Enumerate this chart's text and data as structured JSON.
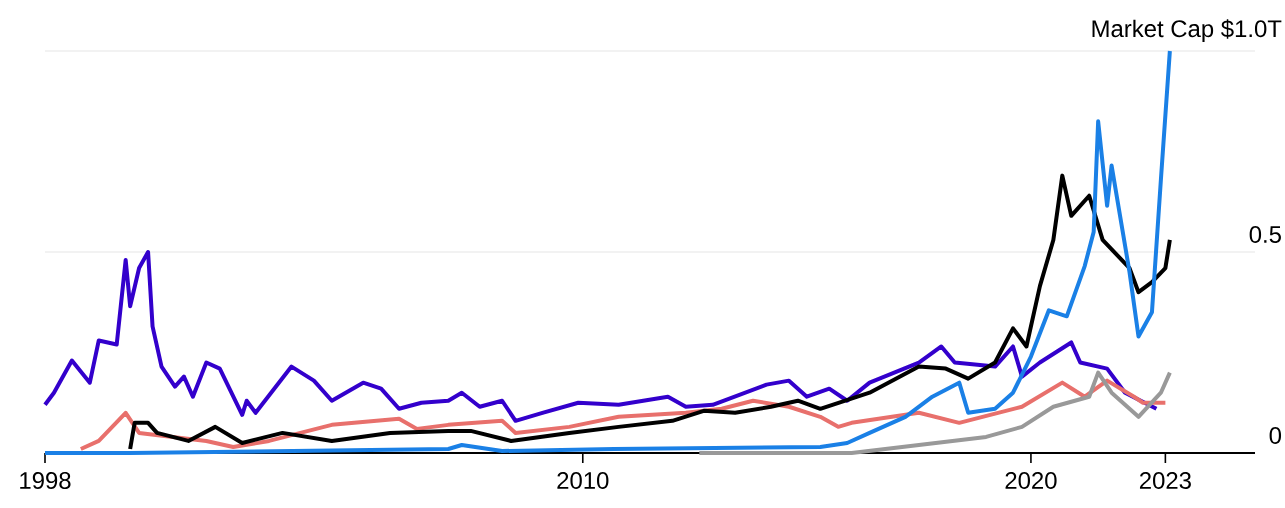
{
  "chart_data": {
    "type": "line",
    "xlim": [
      1998,
      2025
    ],
    "ylim": [
      0,
      1
    ],
    "xticks": [
      1998,
      2010,
      2020,
      2023
    ],
    "yticks": [
      0,
      0.5,
      {
        "value": 1,
        "label": "Market Cap $1.0T"
      }
    ],
    "grid": "y",
    "line_style": "solid",
    "series": [
      {
        "color": "#3300cc",
        "x": [
          1998.0,
          1998.2,
          1998.6,
          1999.0,
          1999.2,
          1999.6,
          1999.8,
          1999.9,
          2000.1,
          2000.3,
          2000.4,
          2000.6,
          2000.9,
          2001.1,
          2001.3,
          2001.6,
          2001.9,
          2002.4,
          2002.5,
          2002.7,
          2003.5,
          2004.0,
          2004.4,
          2005.1,
          2005.5,
          2005.9,
          2006.4,
          2007.0,
          2007.3,
          2007.7,
          2008.2,
          2008.5,
          2009.1,
          2009.9,
          2010.8,
          2011.9,
          2012.3,
          2012.9,
          2014.1,
          2014.6,
          2015.0,
          2015.5,
          2015.9,
          2016.4,
          2017.5,
          2018.0,
          2018.3,
          2019.2,
          2019.6,
          2019.8,
          2020.2,
          2020.9,
          2021.1,
          2021.7,
          2022.1,
          2022.8
        ],
        "values": [
          0.12,
          0.15,
          0.23,
          0.175,
          0.28,
          0.27,
          0.48,
          0.365,
          0.46,
          0.5,
          0.315,
          0.215,
          0.165,
          0.19,
          0.14,
          0.225,
          0.21,
          0.095,
          0.13,
          0.1,
          0.215,
          0.18,
          0.13,
          0.175,
          0.16,
          0.11,
          0.125,
          0.13,
          0.15,
          0.115,
          0.13,
          0.08,
          0.1,
          0.125,
          0.12,
          0.14,
          0.115,
          0.12,
          0.17,
          0.18,
          0.14,
          0.16,
          0.13,
          0.175,
          0.225,
          0.265,
          0.225,
          0.215,
          0.265,
          0.19,
          0.225,
          0.275,
          0.225,
          0.21,
          0.15,
          0.11
        ]
      },
      {
        "color": "#e8706c",
        "x": [
          1998.8,
          1999.2,
          1999.8,
          2000.1,
          2001.6,
          2002.2,
          2003.0,
          2004.4,
          2005.9,
          2006.3,
          2007.0,
          2008.2,
          2008.5,
          2009.7,
          2010.8,
          2012.3,
          2013.1,
          2013.8,
          2014.6,
          2015.3,
          2015.7,
          2016.0,
          2017.5,
          2018.4,
          2019.8,
          2020.7,
          2021.2,
          2021.7,
          2022.3,
          2022.5,
          2023.0
        ],
        "values": [
          0.01,
          0.03,
          0.1,
          0.05,
          0.03,
          0.015,
          0.03,
          0.07,
          0.085,
          0.06,
          0.07,
          0.08,
          0.05,
          0.065,
          0.09,
          0.1,
          0.11,
          0.13,
          0.115,
          0.09,
          0.065,
          0.075,
          0.1,
          0.075,
          0.115,
          0.175,
          0.14,
          0.18,
          0.14,
          0.125,
          0.125
        ]
      },
      {
        "color": "#000000",
        "x": [
          1999.9,
          2000.0,
          2000.3,
          2000.5,
          2001.2,
          2001.8,
          2002.4,
          2003.3,
          2004.4,
          2005.7,
          2007.0,
          2007.5,
          2008.4,
          2009.7,
          2010.8,
          2012.0,
          2012.7,
          2013.4,
          2014.2,
          2014.8,
          2015.3,
          2016.4,
          2017.5,
          2018.1,
          2018.6,
          2019.2,
          2019.6,
          2019.9,
          2020.2,
          2020.5,
          2020.7,
          2020.9,
          2021.3,
          2021.6,
          2022.2,
          2022.4,
          2022.7,
          2023.0,
          2023.1
        ],
        "values": [
          0.01,
          0.075,
          0.075,
          0.05,
          0.03,
          0.065,
          0.025,
          0.05,
          0.03,
          0.05,
          0.055,
          0.055,
          0.03,
          0.05,
          0.065,
          0.08,
          0.105,
          0.1,
          0.115,
          0.13,
          0.11,
          0.15,
          0.215,
          0.21,
          0.185,
          0.225,
          0.31,
          0.265,
          0.415,
          0.53,
          0.69,
          0.59,
          0.64,
          0.53,
          0.46,
          0.4,
          0.425,
          0.46,
          0.53
        ]
      },
      {
        "color": "#999999",
        "x": [
          2012.6,
          2016.0,
          2017.5,
          2019.0,
          2019.8,
          2020.5,
          2021.3,
          2021.5,
          2021.8,
          2022.4,
          2022.9,
          2023.1
        ],
        "values": [
          0,
          0,
          0.02,
          0.04,
          0.065,
          0.115,
          0.14,
          0.2,
          0.15,
          0.09,
          0.15,
          0.2
        ]
      },
      {
        "color": "#1a80e6",
        "x": [
          1998.0,
          1999.9,
          2007.0,
          2007.3,
          2008.2,
          2010.7,
          2015.3,
          2015.9,
          2016.4,
          2017.2,
          2017.8,
          2018.4,
          2018.6,
          2019.2,
          2019.6,
          2020.0,
          2020.4,
          2020.8,
          2021.2,
          2021.4,
          2021.5,
          2021.7,
          2021.8,
          2022.2,
          2022.4,
          2022.7,
          2022.9,
          2023.1
        ],
        "values": [
          0,
          0,
          0.01,
          0.02,
          0.005,
          0.01,
          0.015,
          0.025,
          0.05,
          0.09,
          0.14,
          0.175,
          0.1,
          0.11,
          0.15,
          0.24,
          0.355,
          0.34,
          0.465,
          0.55,
          0.825,
          0.615,
          0.715,
          0.45,
          0.29,
          0.35,
          0.68,
          1.0
        ]
      }
    ]
  }
}
